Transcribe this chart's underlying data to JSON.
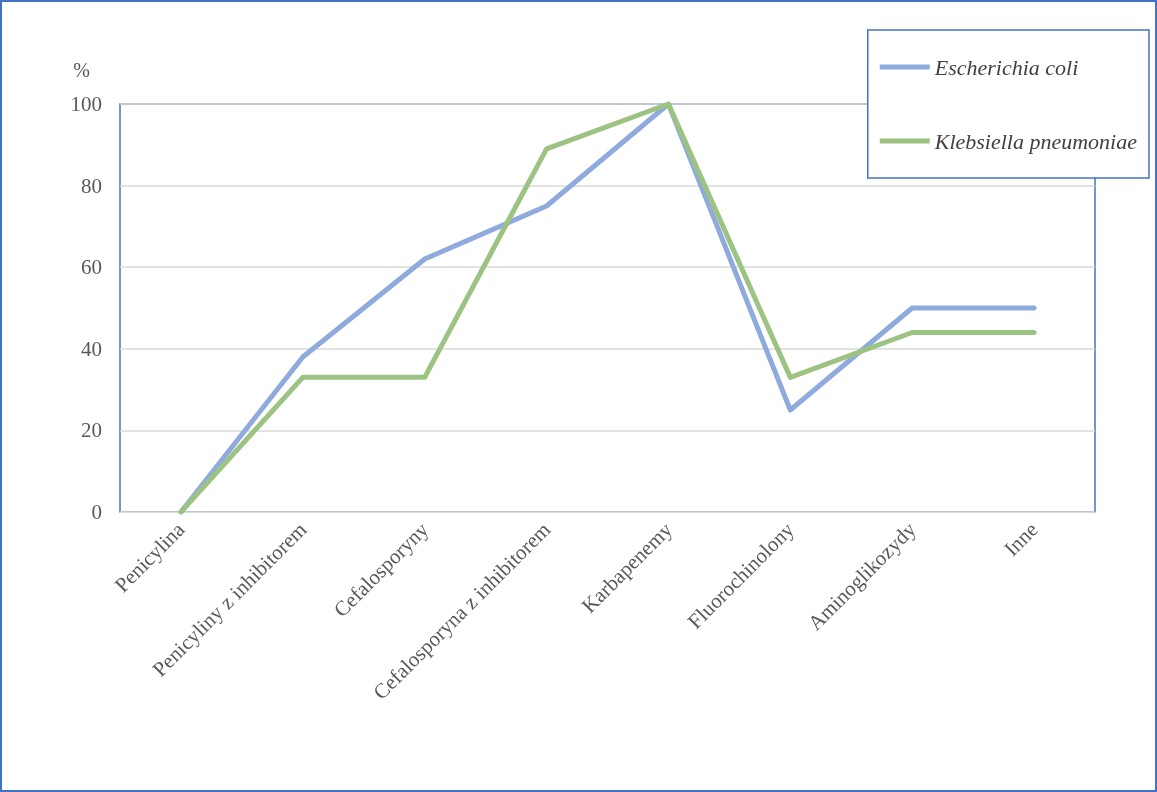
{
  "chart_data": {
    "type": "line",
    "ylabel": "%",
    "categories": [
      "Penicylina",
      "Penicyliny z inhibitorem",
      "Cefalosporyny",
      "Cefalosporyna z inhibitorem",
      "Karbapenemy",
      "Fluorochinolony",
      "Aminoglikozydy",
      "Inne"
    ],
    "series": [
      {
        "name": "Escherichia coli",
        "color": "#8faadc",
        "values": [
          0,
          38,
          62,
          75,
          100,
          25,
          50,
          50
        ]
      },
      {
        "name": "Klebsiella pneumoniae",
        "color": "#9dc383",
        "values": [
          0,
          33,
          33,
          89,
          100,
          33,
          44,
          44
        ]
      }
    ],
    "ylim": [
      0,
      100
    ],
    "yticks": [
      0,
      20,
      40,
      60,
      80,
      100
    ],
    "grid": "y",
    "legend": "top right",
    "marker": "none",
    "line_style": "solid"
  }
}
